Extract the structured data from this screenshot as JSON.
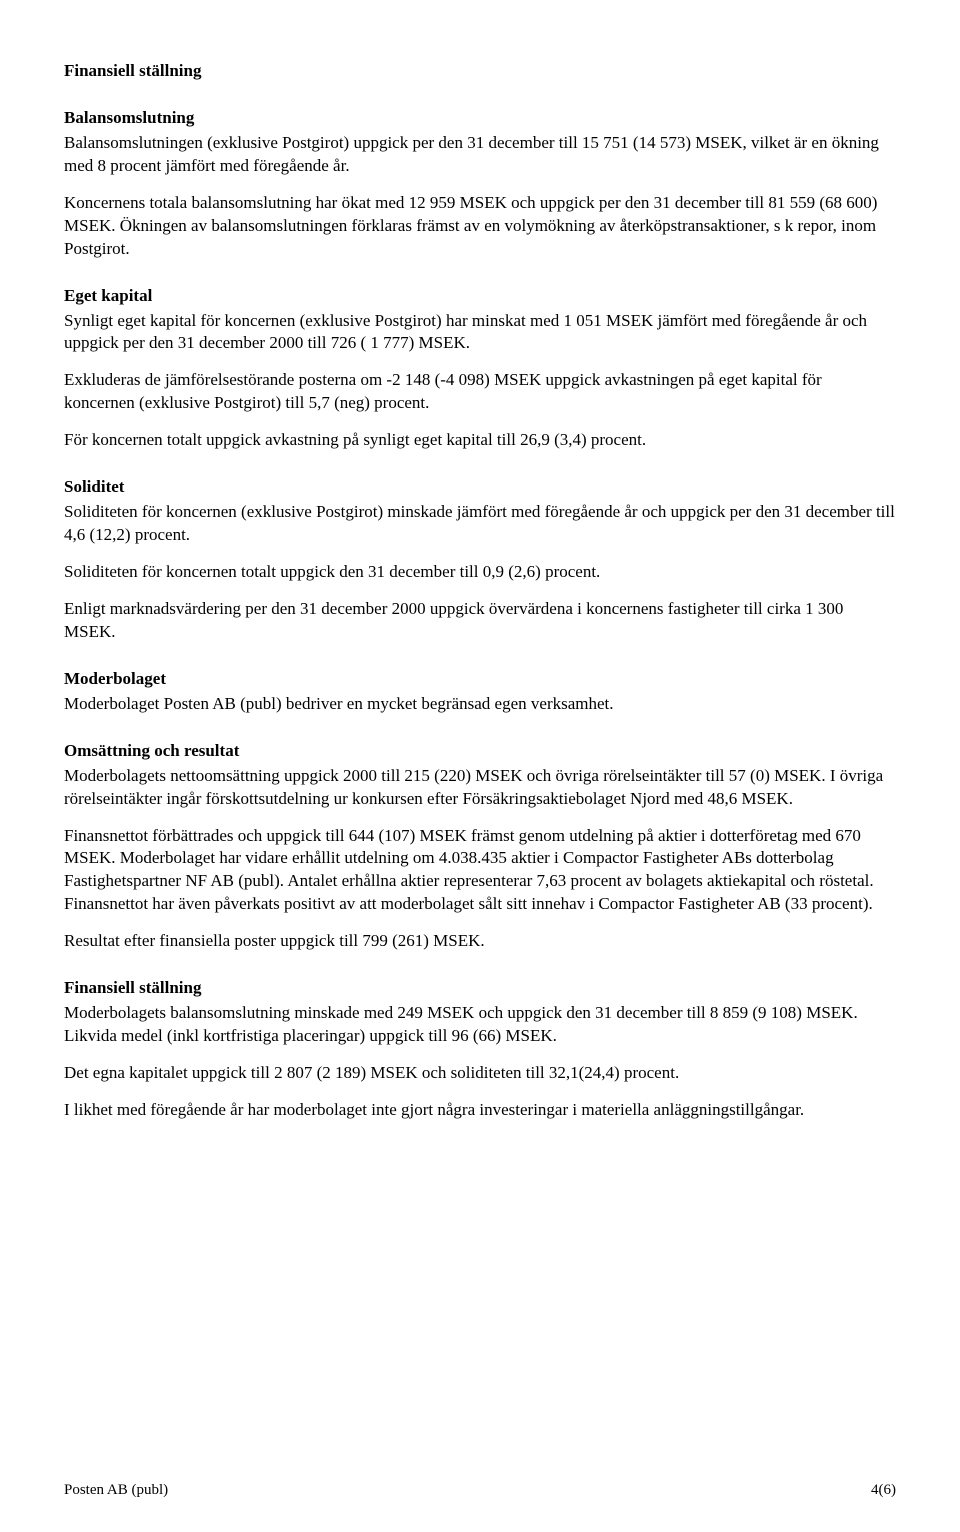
{
  "sections": {
    "finansiell_stallning_1": {
      "title": "Finansiell ställning",
      "balansomslutning": {
        "title": "Balansomslutning",
        "p1": "Balansomslutningen (exklusive Postgirot) uppgick per den 31 december till 15 751 (14 573) MSEK, vilket är en ökning med 8 procent jämfört med föregående år.",
        "p2": "Koncernens totala balansomslutning har ökat med 12 959 MSEK och uppgick per den 31 december till 81 559 (68 600) MSEK. Ökningen av balansomslutningen förklaras främst av en volymökning av återköpstransaktioner, s k repor, inom Postgirot."
      },
      "eget_kapital": {
        "title": "Eget kapital",
        "p1": "Synligt eget kapital för koncernen (exklusive Postgirot) har minskat med 1 051 MSEK jämfört med föregående år och uppgick per den 31 december 2000 till 726 ( 1 777) MSEK.",
        "p2": "Exkluderas de jämförelsestörande posterna om -2 148 (-4 098) MSEK uppgick avkastningen på eget kapital för koncernen (exklusive Postgirot) till 5,7 (neg) procent.",
        "p3": "För koncernen totalt uppgick avkastning på synligt eget kapital till 26,9 (3,4) procent."
      },
      "soliditet": {
        "title": "Soliditet",
        "p1": "Soliditeten för koncernen (exklusive Postgirot) minskade jämfört med föregående år och uppgick per den 31 december till 4,6 (12,2) procent.",
        "p2": "Soliditeten för koncernen totalt uppgick den 31 december till 0,9 (2,6) procent.",
        "p3": "Enligt marknadsvärdering per den 31 december 2000 uppgick övervärdena i koncernens fastigheter till cirka 1 300 MSEK."
      }
    },
    "moderbolaget": {
      "title": "Moderbolaget",
      "p1": "Moderbolaget Posten AB (publ) bedriver en mycket begränsad egen verksamhet.",
      "omsattning": {
        "title": "Omsättning och resultat",
        "p1": "Moderbolagets nettoomsättning uppgick 2000 till 215 (220) MSEK och övriga rörelseintäkter till  57 (0) MSEK. I övriga rörelseintäkter ingår förskottsutdelning ur konkursen efter Försäkringsaktiebolaget Njord med 48,6 MSEK.",
        "p2": "Finansnettot förbättrades och uppgick till 644 (107) MSEK främst genom utdelning på aktier i dotterföretag med 670 MSEK. Moderbolaget har vidare erhållit utdelning om 4.038.435 aktier i Compactor Fastigheter ABs dotterbolag Fastighetspartner NF AB (publ). Antalet erhållna aktier representerar 7,63 procent av bolagets aktiekapital och röstetal. Finansnettot har även påverkats positivt av att moderbolaget sålt sitt innehav i Compactor Fastigheter AB (33 procent).",
        "p3": "Resultat efter finansiella poster uppgick till 799 (261) MSEK."
      }
    },
    "finansiell_stallning_2": {
      "title": "Finansiell ställning",
      "p1": "Moderbolagets balansomslutning minskade med 249 MSEK och uppgick den 31 december till 8 859 (9 108) MSEK. Likvida medel (inkl kortfristiga placeringar) uppgick till 96 (66) MSEK.",
      "p2": "Det egna kapitalet uppgick till 2 807 (2 189) MSEK och soliditeten till 32,1(24,4) procent.",
      "p3": "I likhet med föregående år har moderbolaget inte gjort några investeringar i materiella anläggningstillgångar."
    }
  },
  "footer": {
    "left": "Posten AB (publ)",
    "right": "4(6)"
  }
}
